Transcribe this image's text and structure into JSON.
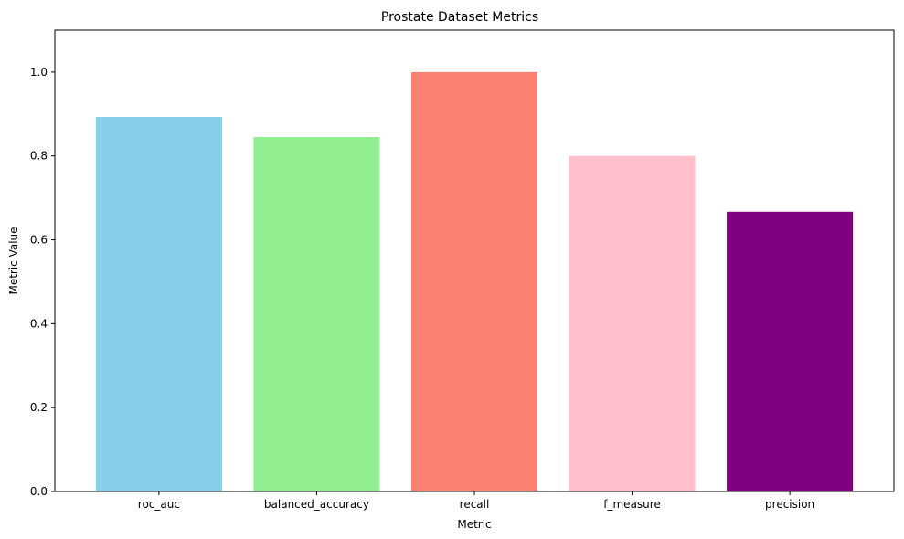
{
  "chart_data": {
    "type": "bar",
    "title": "Prostate Dataset Metrics",
    "xlabel": "Metric",
    "ylabel": "Metric Value",
    "categories": [
      "roc_auc",
      "balanced_accuracy",
      "recall",
      "f_measure",
      "precision"
    ],
    "values": [
      0.893,
      0.845,
      1.0,
      0.8,
      0.667
    ],
    "colors": [
      "#87ceeb",
      "#90ee90",
      "#fa8072",
      "#ffc0cb",
      "#800080"
    ],
    "ylim": [
      0,
      1.1
    ],
    "yticks": [
      "0.0",
      "0.2",
      "0.4",
      "0.6",
      "0.8",
      "1.0"
    ],
    "grid": false,
    "legend": "none"
  }
}
